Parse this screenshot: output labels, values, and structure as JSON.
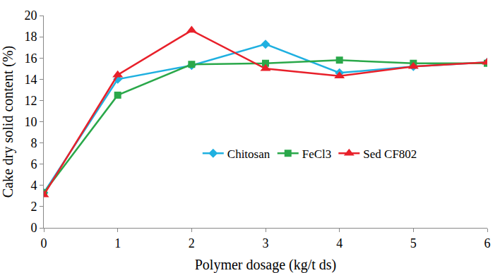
{
  "chart_data": {
    "type": "line",
    "x_label": "Polymer dosage (kg/t ds)",
    "y_label": "Cake dry solid content (%)",
    "x": [
      0,
      1,
      2,
      3,
      4,
      5,
      6
    ],
    "xlim": [
      0,
      6
    ],
    "xticks": [
      0,
      1,
      2,
      3,
      4,
      5,
      6
    ],
    "ylim": [
      0,
      20
    ],
    "yticks": [
      0,
      2,
      4,
      6,
      8,
      10,
      12,
      14,
      16,
      18,
      20
    ],
    "grid": false,
    "legend": "center",
    "series": [
      {
        "name": "Chitosan",
        "color": "#1fb0e0",
        "marker": "diamond",
        "values": [
          3.3,
          14.0,
          15.3,
          17.3,
          14.6,
          15.2,
          15.6
        ]
      },
      {
        "name": "FeCl3",
        "color": "#2aa84a",
        "marker": "square",
        "values": [
          3.3,
          12.5,
          15.4,
          15.5,
          15.8,
          15.5,
          15.5
        ]
      },
      {
        "name": "Sed CF802",
        "color": "#e8202a",
        "marker": "triangle-up",
        "values": [
          3.1,
          14.4,
          18.6,
          15.0,
          14.3,
          15.2,
          15.6
        ]
      }
    ]
  }
}
